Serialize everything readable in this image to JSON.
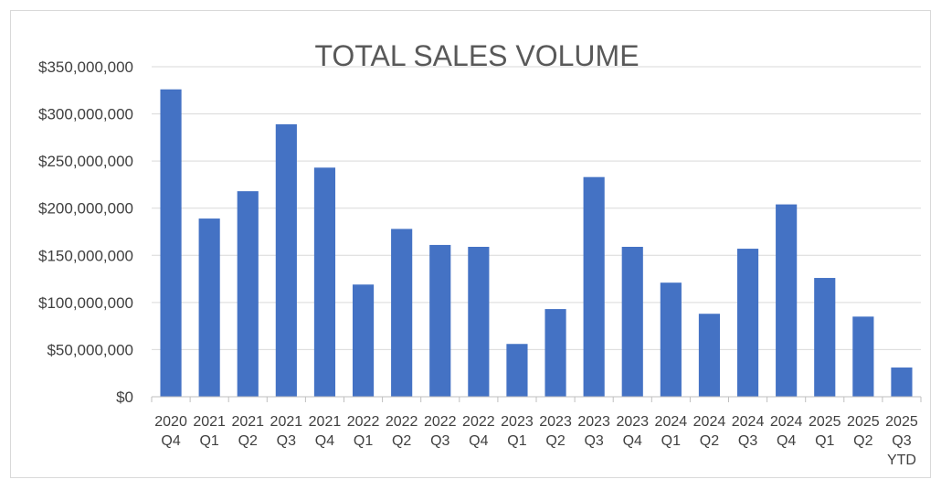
{
  "chart_data": {
    "type": "bar",
    "title": "TOTAL SALES VOLUME",
    "xlabel": "",
    "ylabel": "",
    "ylim": [
      0,
      350000000
    ],
    "yticks": [
      "$0",
      "$50,000,000",
      "$100,000,000",
      "$150,000,000",
      "$200,000,000",
      "$250,000,000",
      "$300,000,000",
      "$350,000,000"
    ],
    "ytick_values": [
      0,
      50000000,
      100000000,
      150000000,
      200000000,
      250000000,
      300000000,
      350000000
    ],
    "categories": [
      [
        "2020",
        "Q4"
      ],
      [
        "2021",
        "Q1"
      ],
      [
        "2021",
        "Q2"
      ],
      [
        "2021",
        "Q3"
      ],
      [
        "2021",
        "Q4"
      ],
      [
        "2022",
        "Q1"
      ],
      [
        "2022",
        "Q2"
      ],
      [
        "2022",
        "Q3"
      ],
      [
        "2022",
        "Q4"
      ],
      [
        "2023",
        "Q1"
      ],
      [
        "2023",
        "Q2"
      ],
      [
        "2023",
        "Q3"
      ],
      [
        "2023",
        "Q4"
      ],
      [
        "2024",
        "Q1"
      ],
      [
        "2024",
        "Q2"
      ],
      [
        "2024",
        "Q3"
      ],
      [
        "2024",
        "Q4"
      ],
      [
        "2025",
        "Q1"
      ],
      [
        "2025",
        "Q2"
      ],
      [
        "2025",
        "Q3",
        "YTD"
      ]
    ],
    "values": [
      326000000,
      189000000,
      218000000,
      289000000,
      243000000,
      119000000,
      178000000,
      161000000,
      159000000,
      56000000,
      93000000,
      233000000,
      159000000,
      121000000,
      88000000,
      157000000,
      204000000,
      126000000,
      85000000,
      31000000
    ],
    "grid": true,
    "legend": "none",
    "colors": {
      "bar": "#4472c4",
      "grid": "#d9d9d9",
      "axis": "#bfbfbf"
    }
  }
}
